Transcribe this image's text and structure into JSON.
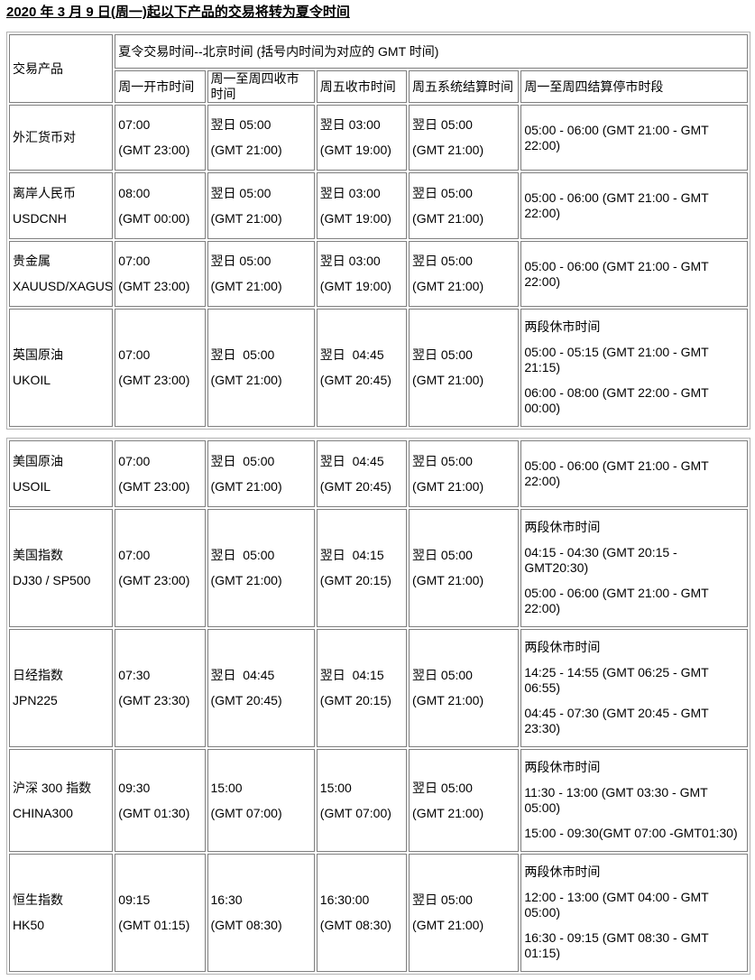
{
  "title": "2020 年 3 月 9 日(周一)起以下产品的交易将转为夏令时间",
  "table": {
    "corner_header": "交易产品",
    "group_header": "夏令交易时间--北京时间 (括号内时间为对应的 GMT 时间)",
    "column_headers": [
      "周一开市时间",
      "周一至周四收市时间",
      "周五收市时间",
      "周五系统结算时间",
      "周一至周四结算停市时段"
    ],
    "column_keys": [
      "product",
      "monday-open-time",
      "mon-thu-close-time",
      "friday-close-time",
      "friday-settlement-time",
      "mon-thu-settlement-break"
    ],
    "sections": [
      {
        "rows": [
          {
            "cells": [
              [
                "外汇货币对"
              ],
              [
                "07:00",
                "(GMT 23:00)"
              ],
              [
                "翌日 05:00",
                "(GMT 21:00)"
              ],
              [
                "翌日 03:00",
                "(GMT 19:00)"
              ],
              [
                "翌日 05:00",
                "(GMT 21:00)"
              ],
              [
                "05:00 - 06:00 (GMT 21:00 - GMT 22:00)"
              ]
            ]
          },
          {
            "cells": [
              [
                "离岸人民币",
                "USDCNH"
              ],
              [
                "08:00",
                "(GMT 00:00)"
              ],
              [
                "翌日 05:00",
                "(GMT 21:00)"
              ],
              [
                "翌日 03:00",
                "(GMT 19:00)"
              ],
              [
                "翌日 05:00",
                "(GMT 21:00)"
              ],
              [
                "05:00 - 06:00 (GMT 21:00 - GMT 22:00)"
              ]
            ]
          },
          {
            "cells": [
              [
                "贵金属",
                "XAUUSD/XAGUSD"
              ],
              [
                "07:00",
                "(GMT 23:00)"
              ],
              [
                "翌日 05:00",
                "(GMT 21:00)"
              ],
              [
                "翌日 03:00",
                "(GMT 19:00)"
              ],
              [
                "翌日 05:00",
                "(GMT 21:00)"
              ],
              [
                "05:00 - 06:00 (GMT 21:00 - GMT 22:00)"
              ]
            ]
          },
          {
            "cells": [
              [
                "英国原油",
                "UKOIL"
              ],
              [
                "07:00",
                "(GMT 23:00)"
              ],
              [
                "翌日  05:00",
                "(GMT 21:00)"
              ],
              [
                "翌日  04:45",
                "(GMT 20:45)"
              ],
              [
                "翌日 05:00",
                "(GMT 21:00)"
              ],
              [
                "两段休市时间",
                "05:00 - 05:15 (GMT 21:00 - GMT 21:15)",
                "06:00 - 08:00 (GMT 22:00 - GMT 00:00)"
              ]
            ]
          }
        ]
      },
      {
        "rows": [
          {
            "cells": [
              [
                "美国原油",
                "USOIL"
              ],
              [
                "07:00",
                "(GMT 23:00)"
              ],
              [
                "翌日  05:00",
                "(GMT 21:00)"
              ],
              [
                "翌日  04:45",
                "(GMT 20:45)"
              ],
              [
                "翌日 05:00",
                "(GMT 21:00)"
              ],
              [
                "05:00 - 06:00 (GMT 21:00 - GMT 22:00)"
              ]
            ]
          },
          {
            "cells": [
              [
                "美国指数",
                "DJ30 / SP500"
              ],
              [
                "07:00",
                "(GMT 23:00)"
              ],
              [
                "翌日  05:00",
                "(GMT 21:00)"
              ],
              [
                "翌日  04:15",
                "(GMT 20:15)"
              ],
              [
                "翌日 05:00",
                "(GMT 21:00)"
              ],
              [
                "两段休市时间",
                "04:15 - 04:30 (GMT 20:15 - GMT20:30)",
                "05:00 - 06:00 (GMT 21:00 - GMT 22:00)"
              ]
            ]
          },
          {
            "cells": [
              [
                "日经指数",
                "JPN225"
              ],
              [
                "07:30",
                "(GMT 23:30)"
              ],
              [
                "翌日  04:45",
                "(GMT 20:45)"
              ],
              [
                "翌日  04:15",
                "(GMT 20:15)"
              ],
              [
                "翌日 05:00",
                "(GMT 21:00)"
              ],
              [
                "两段休市时间",
                "14:25 - 14:55 (GMT 06:25 - GMT 06:55)",
                "04:45 - 07:30 (GMT 20:45 - GMT 23:30)"
              ]
            ]
          },
          {
            "cells": [
              [
                "沪深 300 指数",
                "CHINA300"
              ],
              [
                "09:30",
                "(GMT 01:30)"
              ],
              [
                "15:00",
                "(GMT 07:00)"
              ],
              [
                "15:00",
                "(GMT 07:00)"
              ],
              [
                "翌日 05:00",
                "(GMT 21:00)"
              ],
              [
                "两段休市时间",
                "11:30 - 13:00 (GMT 03:30 - GMT 05:00)",
                "15:00 - 09:30(GMT 07:00 -GMT01:30)"
              ]
            ]
          },
          {
            "cells": [
              [
                "恒生指数",
                "HK50"
              ],
              [
                "09:15",
                "(GMT 01:15)"
              ],
              [
                "16:30",
                "(GMT 08:30)"
              ],
              [
                "16:30:00",
                "(GMT 08:30)"
              ],
              [
                "翌日 05:00",
                "(GMT 21:00)"
              ],
              [
                "两段休市时间",
                "12:00 - 13:00 (GMT 04:00 - GMT 05:00)",
                "16:30 - 09:15 (GMT 08:30 - GMT 01:15)"
              ]
            ]
          }
        ]
      }
    ]
  }
}
